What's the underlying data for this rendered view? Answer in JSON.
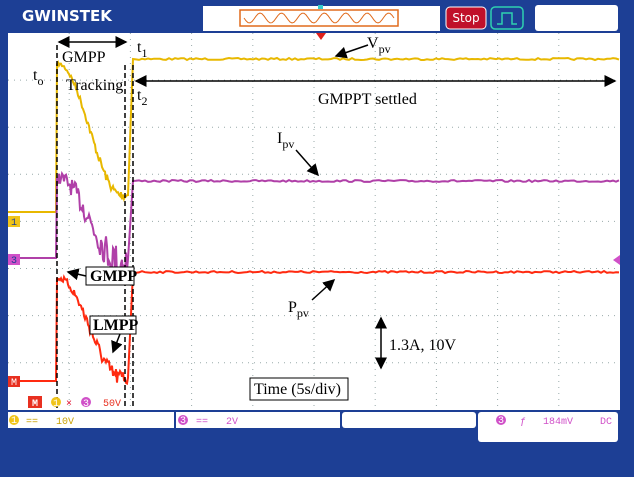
{
  "header": {
    "logo": "GWINSTEK",
    "status": "Stop"
  },
  "annotations": {
    "gmpp_tracking": [
      "GMPP",
      "Tracking"
    ],
    "t0": {
      "base": "t",
      "sub": "o"
    },
    "t1": {
      "base": "t",
      "sub": "1"
    },
    "t2": {
      "base": "t",
      "sub": "2"
    },
    "vpv": {
      "base": "V",
      "sub": "pv"
    },
    "ipv": {
      "base": "I",
      "sub": "pv"
    },
    "ppv": {
      "base": "P",
      "sub": "pv"
    },
    "settled": "GMPPT settled",
    "gmpp": "GMPP",
    "lmpp": "LMPP",
    "scale": "1.3A, 10V",
    "time": "Time (5s/div)"
  },
  "markers": [
    "1",
    "3",
    "M"
  ],
  "status_line": {
    "mode": "M",
    "ch1": "1",
    "times": "×",
    "ch3": "3",
    "volts": "50V"
  },
  "footer": {
    "ch1": {
      "num": "1",
      "coupling": "==",
      "scale": "10V"
    },
    "ch3": {
      "num": "3",
      "coupling": "==",
      "scale": "2V"
    },
    "trigger": {
      "num": "3",
      "edge": "ƒ",
      "level": "184mV",
      "coupling": "DC"
    }
  }
}
